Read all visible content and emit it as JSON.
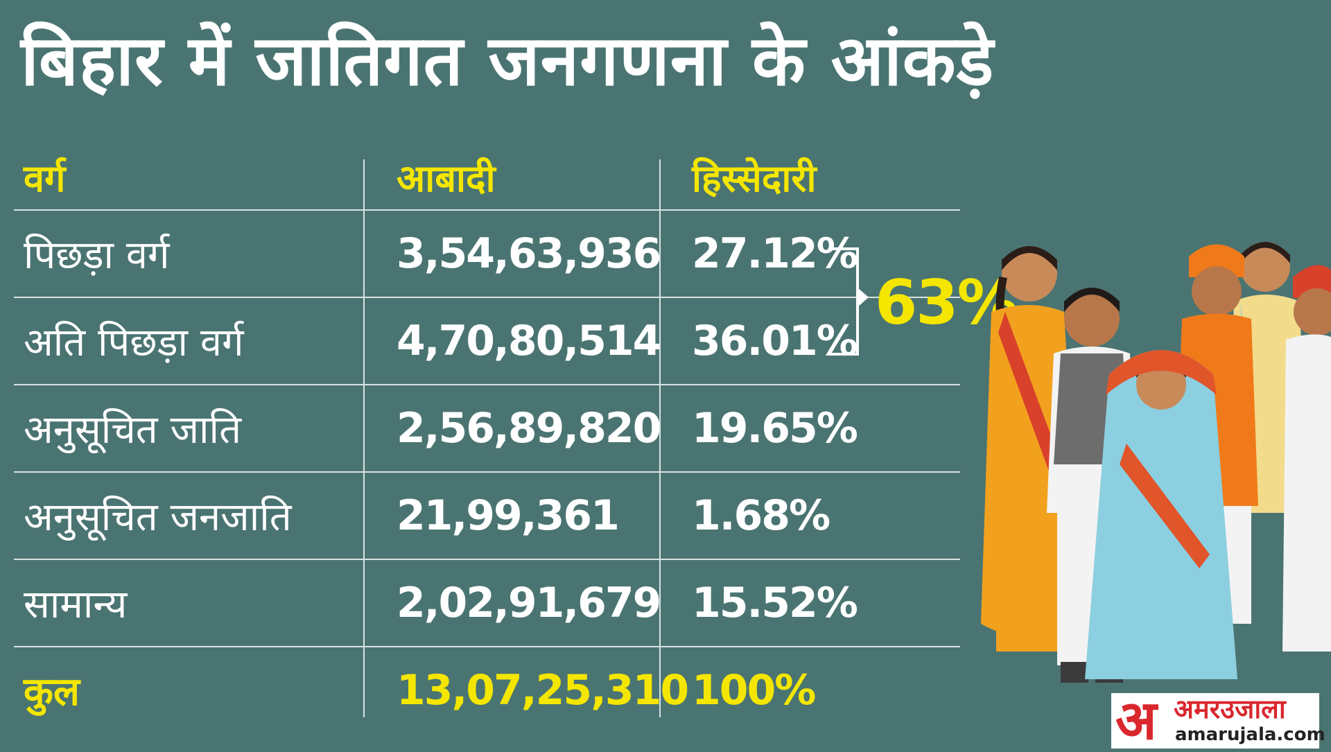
{
  "title": "बिहार में जातिगत जनगणना के आंकड़े",
  "headers": {
    "category": "वर्ग",
    "population": "आबादी",
    "share": "हिस्सेदारी"
  },
  "rows": [
    {
      "category": "पिछड़ा वर्ग",
      "population": "3,54,63,936",
      "share": "27.12%"
    },
    {
      "category": "अति पिछड़ा वर्ग",
      "population": "4,70,80,514",
      "share": "36.01%"
    },
    {
      "category": "अनुसूचित जाति",
      "population": "2,56,89,820",
      "share": "19.65%"
    },
    {
      "category": "अनुसूचित जनजाति",
      "population": "21,99,361",
      "share": "1.68%"
    },
    {
      "category": "सामान्य",
      "population": "2,02,91,679",
      "share": "15.52%"
    }
  ],
  "total": {
    "category": "कुल",
    "population": "13,07,25,310",
    "share": "100%"
  },
  "combined_share": "63%",
  "logo": {
    "mark": "अ",
    "name": "अमरउजाला",
    "url": "amarujala.com"
  },
  "colors": {
    "background": "#4a7472",
    "accent": "#f4e600",
    "text": "#ffffff",
    "logo_red": "#d9272e"
  },
  "chart_data": {
    "type": "table",
    "title": "बिहार में जातिगत जनगणना के आंकड़े",
    "columns": [
      "वर्ग",
      "आबादी",
      "हिस्सेदारी"
    ],
    "categories": [
      "पिछड़ा वर्ग",
      "अति पिछड़ा वर्ग",
      "अनुसूचित जाति",
      "अनुसूचित जनजाति",
      "सामान्य",
      "कुल"
    ],
    "population": [
      35463936,
      47080514,
      25689820,
      2199361,
      20291679,
      130725310
    ],
    "share_percent": [
      27.12,
      36.01,
      19.65,
      1.68,
      15.52,
      100
    ],
    "annotations": [
      {
        "text": "63%",
        "applies_to": [
          "पिछड़ा वर्ग",
          "अति पिछड़ा वर्ग"
        ]
      }
    ]
  }
}
